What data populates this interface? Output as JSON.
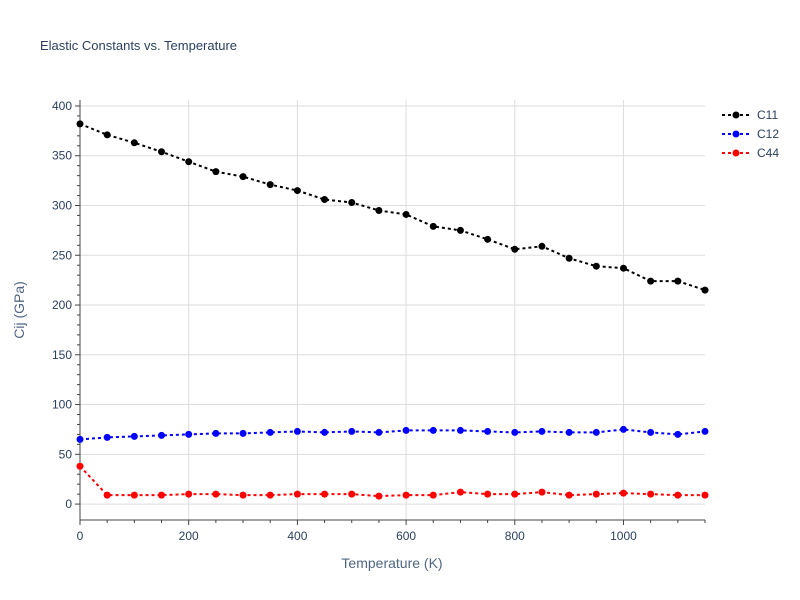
{
  "chart_data": {
    "type": "line",
    "title": "Elastic Constants vs. Temperature",
    "xlabel": "Temperature (K)",
    "ylabel": "Cij (GPa)",
    "xlim": [
      0,
      1150
    ],
    "ylim": [
      -16,
      406
    ],
    "xticks": [
      0,
      200,
      400,
      600,
      800,
      1000
    ],
    "yticks": [
      0,
      50,
      100,
      150,
      200,
      250,
      300,
      350,
      400
    ],
    "grid": true,
    "legend_position": "top-right",
    "x": [
      0,
      50,
      100,
      150,
      200,
      250,
      300,
      350,
      400,
      450,
      500,
      550,
      600,
      650,
      700,
      750,
      800,
      850,
      900,
      950,
      1000,
      1050,
      1100,
      1150
    ],
    "series": [
      {
        "name": "C11",
        "color": "#000000",
        "values": [
          382,
          371,
          363,
          354,
          344,
          334,
          329,
          321,
          315,
          306,
          303,
          295,
          291,
          279,
          275,
          266,
          256,
          259,
          247,
          239,
          237,
          224,
          224,
          215
        ]
      },
      {
        "name": "C12",
        "color": "#0000ff",
        "values": [
          65,
          67,
          68,
          69,
          70,
          71,
          71,
          72,
          73,
          72,
          73,
          72,
          74,
          74,
          74,
          73,
          72,
          73,
          72,
          72,
          75,
          72,
          70,
          73
        ]
      },
      {
        "name": "C44",
        "color": "#ff0000",
        "values": [
          38,
          9,
          9,
          9,
          10,
          10,
          9,
          9,
          10,
          10,
          10,
          8,
          9,
          9,
          12,
          10,
          10,
          12,
          9,
          10,
          11,
          10,
          9,
          9
        ]
      }
    ]
  }
}
